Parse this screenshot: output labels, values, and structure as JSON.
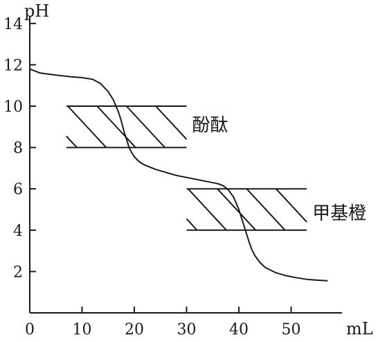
{
  "chart_data": {
    "type": "line",
    "title": "",
    "xlabel": "mL",
    "ylabel": "pH",
    "xlim": [
      0,
      60
    ],
    "ylim": [
      0,
      14
    ],
    "x_ticks": [
      0,
      10,
      20,
      30,
      40,
      50
    ],
    "y_ticks": [
      2,
      4,
      6,
      8,
      10,
      12,
      14
    ],
    "grid": false,
    "series": [
      {
        "x": [
          0,
          2,
          5,
          8,
          10,
          12,
          13.5,
          15,
          16,
          17,
          17.5,
          18,
          18.5,
          19,
          19.5,
          20,
          21,
          22,
          24,
          26,
          28,
          30,
          32,
          34,
          36,
          37,
          38,
          39,
          40,
          40.5,
          41,
          41.5,
          42,
          42.5,
          43,
          44,
          45,
          47,
          49,
          51,
          53,
          55,
          57
        ],
        "y": [
          11.8,
          11.6,
          11.5,
          11.42,
          11.38,
          11.3,
          11.1,
          10.7,
          10.3,
          9.7,
          9.3,
          8.8,
          8.4,
          8.0,
          7.75,
          7.55,
          7.3,
          7.15,
          6.95,
          6.8,
          6.65,
          6.55,
          6.45,
          6.35,
          6.25,
          6.15,
          5.95,
          5.6,
          5.0,
          4.6,
          4.2,
          3.8,
          3.4,
          3.05,
          2.8,
          2.45,
          2.2,
          1.95,
          1.8,
          1.7,
          1.62,
          1.58,
          1.55
        ]
      }
    ],
    "indicator_bands": [
      {
        "name": "酚酞",
        "ph_range": [
          8,
          10
        ],
        "x_range": [
          7,
          30
        ]
      },
      {
        "name": "甲基橙",
        "ph_range": [
          4,
          6
        ],
        "x_range": [
          30,
          53
        ]
      }
    ]
  }
}
